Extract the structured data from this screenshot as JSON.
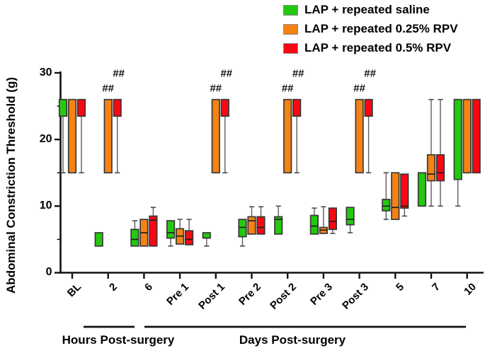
{
  "chart_data": {
    "type": "box",
    "title": "",
    "xlabel": "",
    "ylabel": "Abdominal Constriction Threshold (g)",
    "ylim": [
      0,
      30
    ],
    "yticks": [
      0,
      10,
      20,
      30
    ],
    "yticks_minor": [
      5,
      15,
      25
    ],
    "grid": false,
    "legend_position": "top-right",
    "categories": [
      "BL",
      "2",
      "6",
      "Pre 1",
      "Post 1",
      "Pre 2",
      "Post 2",
      "Pre 3",
      "Post 3",
      "5",
      "7",
      "10"
    ],
    "x_groups": [
      {
        "label": "Hours Post-surgery",
        "from": "2",
        "to": "6"
      },
      {
        "label": "Days Post-surgery",
        "from": "Pre 1",
        "to": "10"
      }
    ],
    "series": [
      {
        "name": "LAP + repeated saline",
        "color": "#24C80F",
        "boxes": [
          {
            "lo": 15,
            "q1": 23.5,
            "med": null,
            "q3": 26,
            "hi": null
          },
          {
            "lo": null,
            "q1": 4,
            "med": null,
            "q3": 6,
            "hi": null
          },
          {
            "lo": null,
            "q1": 4,
            "med": 5,
            "q3": 6.5,
            "hi": 7.8
          },
          {
            "lo": 4,
            "q1": 5.2,
            "med": 6,
            "q3": 7.8,
            "hi": null
          },
          {
            "lo": 4,
            "q1": 5.2,
            "med": null,
            "q3": 6,
            "hi": null
          },
          {
            "lo": 4,
            "q1": 5.4,
            "med": 6.8,
            "q3": 8,
            "hi": null
          },
          {
            "lo": null,
            "q1": 5.8,
            "med": 8,
            "q3": 8.4,
            "hi": 10
          },
          {
            "lo": null,
            "q1": 5.8,
            "med": 7,
            "q3": 8.6,
            "hi": 9.7
          },
          {
            "lo": 6,
            "q1": 7.2,
            "med": 8,
            "q3": 9.8,
            "hi": null
          },
          {
            "lo": 8,
            "q1": 9.3,
            "med": 10,
            "q3": 11,
            "hi": 15
          },
          {
            "lo": null,
            "q1": 10,
            "med": null,
            "q3": 15,
            "hi": null
          },
          {
            "lo": 10,
            "q1": 14,
            "med": null,
            "q3": 26,
            "hi": null
          }
        ]
      },
      {
        "name": "LAP + repeated 0.25% RPV",
        "color": "#F58313",
        "boxes": [
          {
            "lo": null,
            "q1": 15,
            "med": null,
            "q3": 26,
            "hi": null
          },
          {
            "lo": null,
            "q1": 15,
            "med": null,
            "q3": 26,
            "hi": null
          },
          {
            "lo": null,
            "q1": 4,
            "med": 6,
            "q3": 8,
            "hi": null
          },
          {
            "lo": null,
            "q1": 4.3,
            "med": 5.5,
            "q3": 6.6,
            "hi": 8
          },
          {
            "lo": null,
            "q1": 15,
            "med": null,
            "q3": 26,
            "hi": null
          },
          {
            "lo": null,
            "q1": 5.8,
            "med": 7.8,
            "q3": 8.4,
            "hi": 9.9
          },
          {
            "lo": null,
            "q1": 15,
            "med": null,
            "q3": 26,
            "hi": null
          },
          {
            "lo": null,
            "q1": 5.9,
            "med": 6.4,
            "q3": 6.8,
            "hi": 9.9
          },
          {
            "lo": null,
            "q1": 15,
            "med": null,
            "q3": 26,
            "hi": null
          },
          {
            "lo": null,
            "q1": 8,
            "med": 9.8,
            "q3": 15,
            "hi": null
          },
          {
            "lo": 10,
            "q1": 13.8,
            "med": 14.8,
            "q3": 17.7,
            "hi": 26
          },
          {
            "lo": null,
            "q1": 15,
            "med": null,
            "q3": 26,
            "hi": null
          }
        ]
      },
      {
        "name": "LAP + repeated 0.5% RPV",
        "color": "#FA0712",
        "boxes": [
          {
            "lo": 15,
            "q1": 23.5,
            "med": null,
            "q3": 26,
            "hi": null
          },
          {
            "lo": 15,
            "q1": 23.5,
            "med": null,
            "q3": 26,
            "hi": null
          },
          {
            "lo": null,
            "q1": 4,
            "med": 7.9,
            "q3": 8.5,
            "hi": 9.8
          },
          {
            "lo": null,
            "q1": 4.2,
            "med": 5,
            "q3": 6.3,
            "hi": 8
          },
          {
            "lo": 15,
            "q1": 23.5,
            "med": null,
            "q3": 26,
            "hi": null
          },
          {
            "lo": null,
            "q1": 5.8,
            "med": 6.8,
            "q3": 8.4,
            "hi": 9.9
          },
          {
            "lo": 15,
            "q1": 23.5,
            "med": null,
            "q3": 26,
            "hi": null
          },
          {
            "lo": 5.9,
            "q1": 6.5,
            "med": 7.7,
            "q3": 9.7,
            "hi": null
          },
          {
            "lo": 15,
            "q1": 23.5,
            "med": null,
            "q3": 26,
            "hi": null
          },
          {
            "lo": 8.5,
            "q1": 9.7,
            "med": 10,
            "q3": 14.8,
            "hi": null
          },
          {
            "lo": 10,
            "q1": 13.8,
            "med": 15,
            "q3": 17.7,
            "hi": 26
          },
          {
            "lo": null,
            "q1": 15,
            "med": null,
            "q3": 26,
            "hi": null
          }
        ]
      }
    ],
    "annotations": [
      {
        "category": "2",
        "text": "##",
        "level": "lower",
        "value": 27.2
      },
      {
        "category": "2",
        "text": "##",
        "level": "upper",
        "value": 29.4
      },
      {
        "category": "Post 1",
        "text": "##",
        "level": "lower",
        "value": 27.2
      },
      {
        "category": "Post 1",
        "text": "##",
        "level": "upper",
        "value": 29.4
      },
      {
        "category": "Post 2",
        "text": "##",
        "level": "lower",
        "value": 27.2
      },
      {
        "category": "Post 2",
        "text": "##",
        "level": "upper",
        "value": 29.4
      },
      {
        "category": "Post 3",
        "text": "##",
        "level": "lower",
        "value": 27.2
      },
      {
        "category": "Post 3",
        "text": "##",
        "level": "upper",
        "value": 29.4
      }
    ]
  }
}
